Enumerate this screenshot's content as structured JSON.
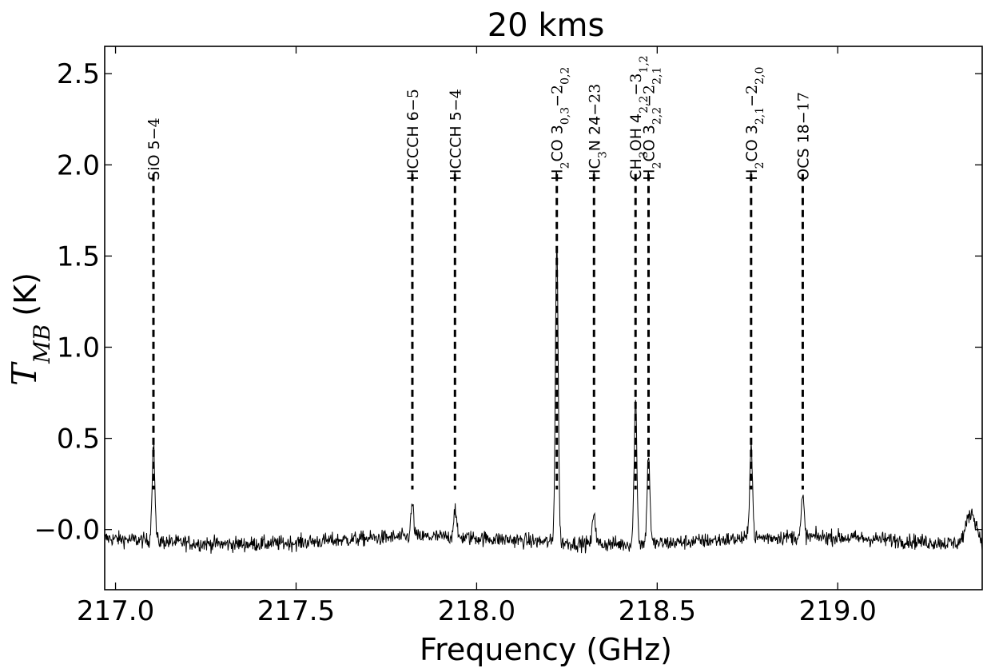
{
  "chart_data": {
    "type": "line",
    "title": "20 kms",
    "xlabel": "Frequency (GHz)",
    "ylabel": "T_MB (K)",
    "xlim": [
      216.97,
      219.4
    ],
    "ylim": [
      -0.33,
      2.65
    ],
    "xticks": [
      "217.0",
      "217.5",
      "218.0",
      "218.5",
      "219.0"
    ],
    "yticks": [
      "−0.0",
      "0.5",
      "1.0",
      "1.5",
      "2.0",
      "2.5"
    ],
    "grid": false,
    "series": [
      {
        "baseline_noise_K": 0.03,
        "peaks": [
          {
            "x": 217.105,
            "y": 0.53
          },
          {
            "x": 217.822,
            "y": 0.18
          },
          {
            "x": 217.94,
            "y": 0.16
          },
          {
            "x": 218.222,
            "y": 1.64
          },
          {
            "x": 218.325,
            "y": 0.18
          },
          {
            "x": 218.44,
            "y": 0.78
          },
          {
            "x": 218.476,
            "y": 0.49
          },
          {
            "x": 218.76,
            "y": 0.52
          },
          {
            "x": 218.903,
            "y": 0.22
          },
          {
            "x": 219.37,
            "y": 0.17
          }
        ]
      }
    ],
    "annotations": [
      {
        "x": 217.105,
        "segments": [
          {
            "t": "SiO 5"
          },
          {
            "t": "−4",
            "serif": true
          }
        ]
      },
      {
        "x": 217.822,
        "segments": [
          {
            "t": "HCCCH 6"
          },
          {
            "t": "−5",
            "serif": true
          }
        ]
      },
      {
        "x": 217.94,
        "segments": [
          {
            "t": "HCCCH 5"
          },
          {
            "t": "−4",
            "serif": true
          }
        ]
      },
      {
        "x": 218.222,
        "segments": [
          {
            "t": "H"
          },
          {
            "t": "2",
            "sub": true
          },
          {
            "t": "CO 3"
          },
          {
            "t": "0,3",
            "sub": true
          },
          {
            "t": "−2",
            "serif": true
          },
          {
            "t": "0,2",
            "sub": true
          }
        ]
      },
      {
        "x": 218.325,
        "segments": [
          {
            "t": "HC"
          },
          {
            "t": "3",
            "sub": true
          },
          {
            "t": "N 24"
          },
          {
            "t": "−23",
            "serif": true
          }
        ]
      },
      {
        "x": 218.44,
        "segments": [
          {
            "t": "CH"
          },
          {
            "t": "3",
            "sub": true
          },
          {
            "t": "OH 4"
          },
          {
            "t": "2,2",
            "sub": true
          },
          {
            "t": "−3",
            "serif": true
          },
          {
            "t": "1,2",
            "sub": true
          }
        ]
      },
      {
        "x": 218.476,
        "segments": [
          {
            "t": "H"
          },
          {
            "t": "2",
            "sub": true
          },
          {
            "t": "CO 3"
          },
          {
            "t": "2,2",
            "sub": true
          },
          {
            "t": "−2",
            "serif": true
          },
          {
            "t": "2,1",
            "sub": true
          }
        ]
      },
      {
        "x": 218.76,
        "segments": [
          {
            "t": "H"
          },
          {
            "t": "2",
            "sub": true
          },
          {
            "t": "CO 3"
          },
          {
            "t": "2,1",
            "sub": true
          },
          {
            "t": "−2",
            "serif": true
          },
          {
            "t": "2,0",
            "sub": true
          }
        ]
      },
      {
        "x": 218.903,
        "segments": [
          {
            "t": "OCS 18"
          },
          {
            "t": "−17",
            "serif": true
          }
        ]
      }
    ],
    "marker_top_y": 1.95
  }
}
